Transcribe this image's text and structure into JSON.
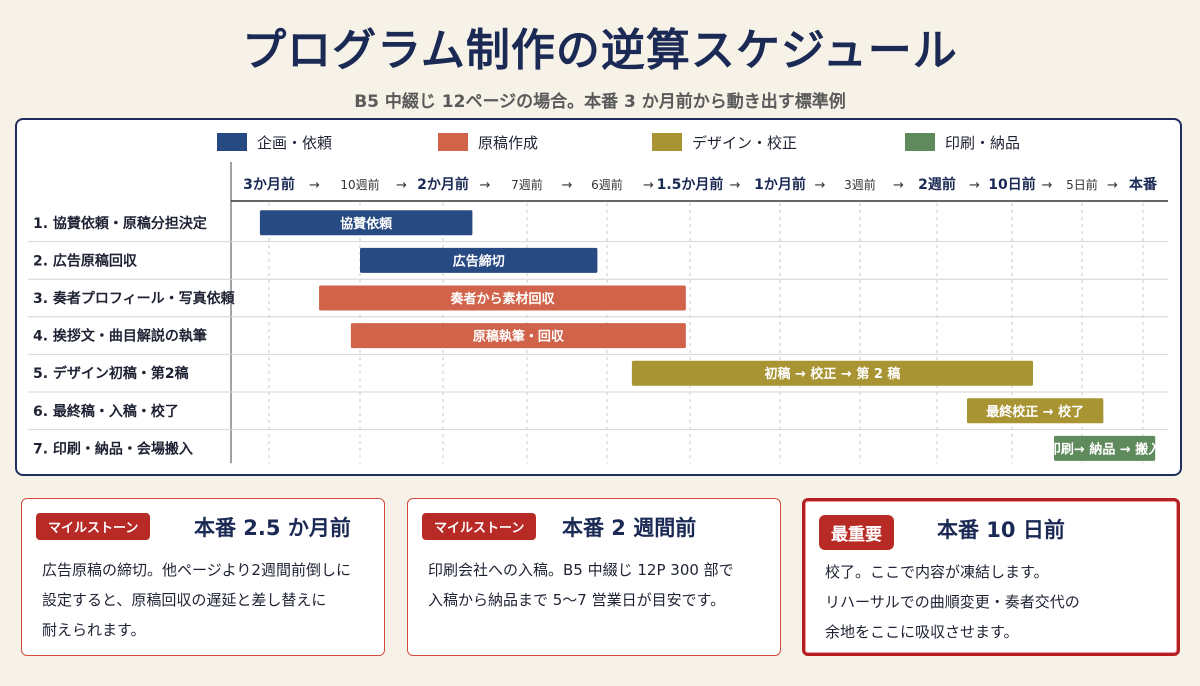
{
  "title": "プログラム制作の逆算スケジュール",
  "subtitle": "B5 中綴じ 12ページの場合。本番 3 か月前から動き出す標準例",
  "colors": {
    "navy": "#284a82",
    "red": "#d0634a",
    "olive": "#a99434",
    "green": "#5f8a5c"
  },
  "legend": [
    {
      "label": "企画・依頼",
      "color": "#284a82"
    },
    {
      "label": "原稿作成",
      "color": "#d0634a"
    },
    {
      "label": "デザイン・校正",
      "color": "#a99434"
    },
    {
      "label": "印刷・納品",
      "color": "#5f8a5c"
    }
  ],
  "chart_data": {
    "type": "gantt",
    "x_ticks": [
      {
        "label": "3か月前",
        "emph": true
      },
      {
        "label": "10週前",
        "emph": false
      },
      {
        "label": "2か月前",
        "emph": true
      },
      {
        "label": "7週前",
        "emph": false
      },
      {
        "label": "6週前",
        "emph": false
      },
      {
        "label": "1.5か月前",
        "emph": true
      },
      {
        "label": "1か月前",
        "emph": true
      },
      {
        "label": "3週前",
        "emph": false
      },
      {
        "label": "2週前",
        "emph": true
      },
      {
        "label": "10日前",
        "emph": true
      },
      {
        "label": "5日前",
        "emph": false
      },
      {
        "label": "本番",
        "emph": true
      }
    ],
    "arrow": "→",
    "rows": [
      {
        "label": "1. 協賛依頼・原稿分担決定",
        "bar": "協賛依頼",
        "start": -0.1,
        "end": 2.35,
        "color": "#284a82"
      },
      {
        "label": "2. 広告原稿回収",
        "bar": "広告締切",
        "start": 1.0,
        "end": 3.88,
        "color": "#284a82"
      },
      {
        "label": "3. 奏者プロフィール・写真依頼",
        "bar": "奏者から素材回収",
        "start": 0.55,
        "end": 4.95,
        "color": "#d0634a"
      },
      {
        "label": "4. 挨拶文・曲目解説の執筆",
        "bar": "原稿執筆・回収",
        "start": 0.9,
        "end": 4.95,
        "color": "#d0634a"
      },
      {
        "label": "5. デザイン初稿・第2稿",
        "bar": "初稿 → 校正 → 第 2 稿",
        "start": 4.3,
        "end": 9.3,
        "color": "#a99434"
      },
      {
        "label": "6. 最終稿・入稿・校了",
        "bar": "最終校正 → 校了",
        "start": 8.4,
        "end": 10.35,
        "color": "#a99434"
      },
      {
        "label": "7. 印刷・納品・会場搬入",
        "bar": "印刷→ 納品 → 搬入",
        "start": 9.6,
        "end": 11.2,
        "color": "#5f8a5c"
      }
    ]
  },
  "cards": [
    {
      "badge": "マイルストーン",
      "heading": "本番  2.5 か月前",
      "lines": [
        "広告原稿の締切。他ページより2週間前倒しに",
        "設定すると、原稿回収の遅延と差し替えに",
        "耐えられます。"
      ]
    },
    {
      "badge": "マイルストーン",
      "heading": "本番  2 週間前",
      "lines": [
        "印刷会社への入稿。B5 中綴じ 12P 300 部で",
        "入稿から納品まで 5～7 営業日が目安です。"
      ]
    },
    {
      "badge": "最重要",
      "heading": "本番  10 日前",
      "lines": [
        "校了。ここで内容が凍結します。",
        "リハーサルでの曲順変更・奏者交代の",
        "余地をここに吸収させます。"
      ]
    }
  ]
}
